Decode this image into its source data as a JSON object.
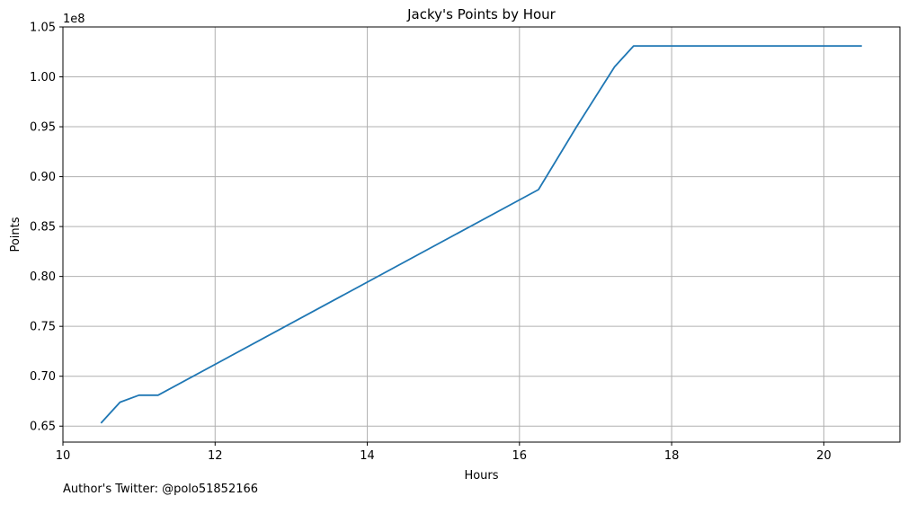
{
  "chart_data": {
    "type": "line",
    "title": "Jacky's Points by Hour",
    "xlabel": "Hours",
    "ylabel": "Points",
    "y_offset_label": "1e8",
    "xlim": [
      10,
      21
    ],
    "ylim": [
      0.634,
      1.05
    ],
    "x_ticks": [
      10,
      12,
      14,
      16,
      18,
      20
    ],
    "x_tick_labels": [
      "10",
      "12",
      "14",
      "16",
      "18",
      "20"
    ],
    "y_ticks": [
      0.65,
      0.7,
      0.75,
      0.8,
      0.85,
      0.9,
      0.95,
      1.0,
      1.05
    ],
    "y_tick_labels": [
      "0.65",
      "0.70",
      "0.75",
      "0.80",
      "0.85",
      "0.90",
      "0.95",
      "1.00",
      "1.05"
    ],
    "grid": true,
    "line_color": "#1f77b4",
    "series": [
      {
        "x": [
          10.5,
          10.75,
          11.0,
          11.25,
          16.25,
          16.75,
          17.25,
          17.5,
          20.5
        ],
        "y": [
          0.653,
          0.674,
          0.681,
          0.681,
          0.887,
          0.95,
          1.01,
          1.031,
          1.031
        ]
      }
    ]
  },
  "footnote": "Author's Twitter: @polo51852166"
}
